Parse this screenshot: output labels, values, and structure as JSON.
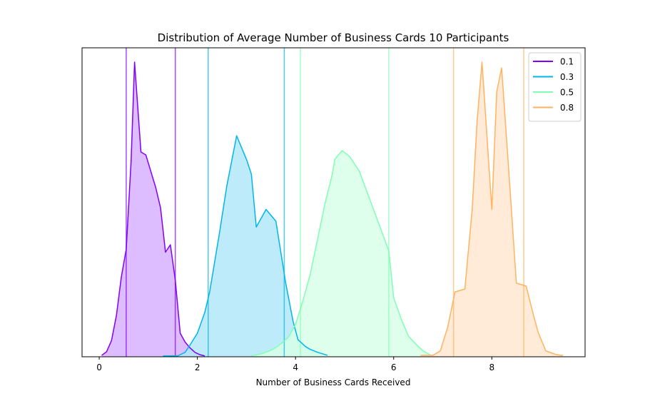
{
  "chart_data": {
    "type": "area",
    "title": "Distribution of Average Number of Business Cards 10 Participants",
    "xlabel": "Number of Business Cards Received",
    "ylabel": "",
    "xlim": [
      -0.35,
      9.9
    ],
    "ylim": [
      0,
      1.0
    ],
    "xticks": [
      0,
      2,
      4,
      6,
      8
    ],
    "show_yticks": false,
    "grid": false,
    "legend": {
      "placement": "top-right"
    },
    "series": [
      {
        "name": "0.1",
        "color": "#8000ff",
        "fill": "#d7b1ff",
        "interval": [
          0.55,
          1.55
        ],
        "points": [
          [
            0.05,
            0.005
          ],
          [
            0.15,
            0.017
          ],
          [
            0.25,
            0.055
          ],
          [
            0.35,
            0.14
          ],
          [
            0.45,
            0.27
          ],
          [
            0.55,
            0.365
          ],
          [
            0.65,
            0.665
          ],
          [
            0.72,
            1.0
          ],
          [
            0.85,
            0.695
          ],
          [
            0.95,
            0.685
          ],
          [
            1.05,
            0.63
          ],
          [
            1.15,
            0.575
          ],
          [
            1.25,
            0.505
          ],
          [
            1.35,
            0.355
          ],
          [
            1.45,
            0.38
          ],
          [
            1.55,
            0.26
          ],
          [
            1.65,
            0.08
          ],
          [
            1.75,
            0.05
          ],
          [
            1.85,
            0.03
          ],
          [
            1.95,
            0.015
          ],
          [
            2.05,
            0.007
          ],
          [
            2.15,
            0.003
          ]
        ]
      },
      {
        "name": "0.3",
        "color": "#00b5eb",
        "fill": "#b1e8f8",
        "interval": [
          2.22,
          3.77
        ],
        "points": [
          [
            1.3,
            0.003
          ],
          [
            1.6,
            0.003
          ],
          [
            1.75,
            0.015
          ],
          [
            1.85,
            0.04
          ],
          [
            2.0,
            0.08
          ],
          [
            2.15,
            0.15
          ],
          [
            2.25,
            0.22
          ],
          [
            2.45,
            0.42
          ],
          [
            2.6,
            0.58
          ],
          [
            2.8,
            0.75
          ],
          [
            3.0,
            0.67
          ],
          [
            3.1,
            0.62
          ],
          [
            3.2,
            0.44
          ],
          [
            3.4,
            0.5
          ],
          [
            3.6,
            0.46
          ],
          [
            3.8,
            0.25
          ],
          [
            3.95,
            0.12
          ],
          [
            4.05,
            0.058
          ],
          [
            4.2,
            0.035
          ],
          [
            4.3,
            0.025
          ],
          [
            4.45,
            0.015
          ],
          [
            4.65,
            0.005
          ]
        ]
      },
      {
        "name": "0.5",
        "color": "#80ffb4",
        "fill": "#d7ffe8",
        "interval": [
          4.1,
          5.9
        ],
        "points": [
          [
            3.1,
            0.003
          ],
          [
            3.3,
            0.01
          ],
          [
            3.5,
            0.022
          ],
          [
            3.65,
            0.037
          ],
          [
            3.85,
            0.065
          ],
          [
            4.0,
            0.11
          ],
          [
            4.15,
            0.19
          ],
          [
            4.3,
            0.28
          ],
          [
            4.45,
            0.4
          ],
          [
            4.6,
            0.52
          ],
          [
            4.75,
            0.62
          ],
          [
            4.8,
            0.67
          ],
          [
            4.95,
            0.7
          ],
          [
            5.1,
            0.68
          ],
          [
            5.3,
            0.63
          ],
          [
            5.5,
            0.54
          ],
          [
            5.7,
            0.45
          ],
          [
            5.9,
            0.36
          ],
          [
            6.0,
            0.2
          ],
          [
            6.15,
            0.13
          ],
          [
            6.3,
            0.07
          ],
          [
            6.5,
            0.035
          ],
          [
            6.6,
            0.02
          ],
          [
            6.75,
            0.006
          ]
        ]
      },
      {
        "name": "0.8",
        "color": "#ffb360",
        "fill": "#ffe8d1",
        "interval": [
          7.22,
          8.65
        ],
        "points": [
          [
            6.55,
            0.005
          ],
          [
            6.8,
            0.005
          ],
          [
            6.95,
            0.02
          ],
          [
            7.1,
            0.1
          ],
          [
            7.25,
            0.22
          ],
          [
            7.45,
            0.23
          ],
          [
            7.6,
            0.5
          ],
          [
            7.7,
            0.8
          ],
          [
            7.8,
            1.0
          ],
          [
            8.0,
            0.5
          ],
          [
            8.1,
            0.9
          ],
          [
            8.2,
            0.98
          ],
          [
            8.35,
            0.62
          ],
          [
            8.5,
            0.25
          ],
          [
            8.7,
            0.24
          ],
          [
            8.85,
            0.14
          ],
          [
            8.95,
            0.08
          ],
          [
            9.1,
            0.02
          ],
          [
            9.3,
            0.008
          ],
          [
            9.45,
            0.004
          ]
        ]
      }
    ]
  }
}
